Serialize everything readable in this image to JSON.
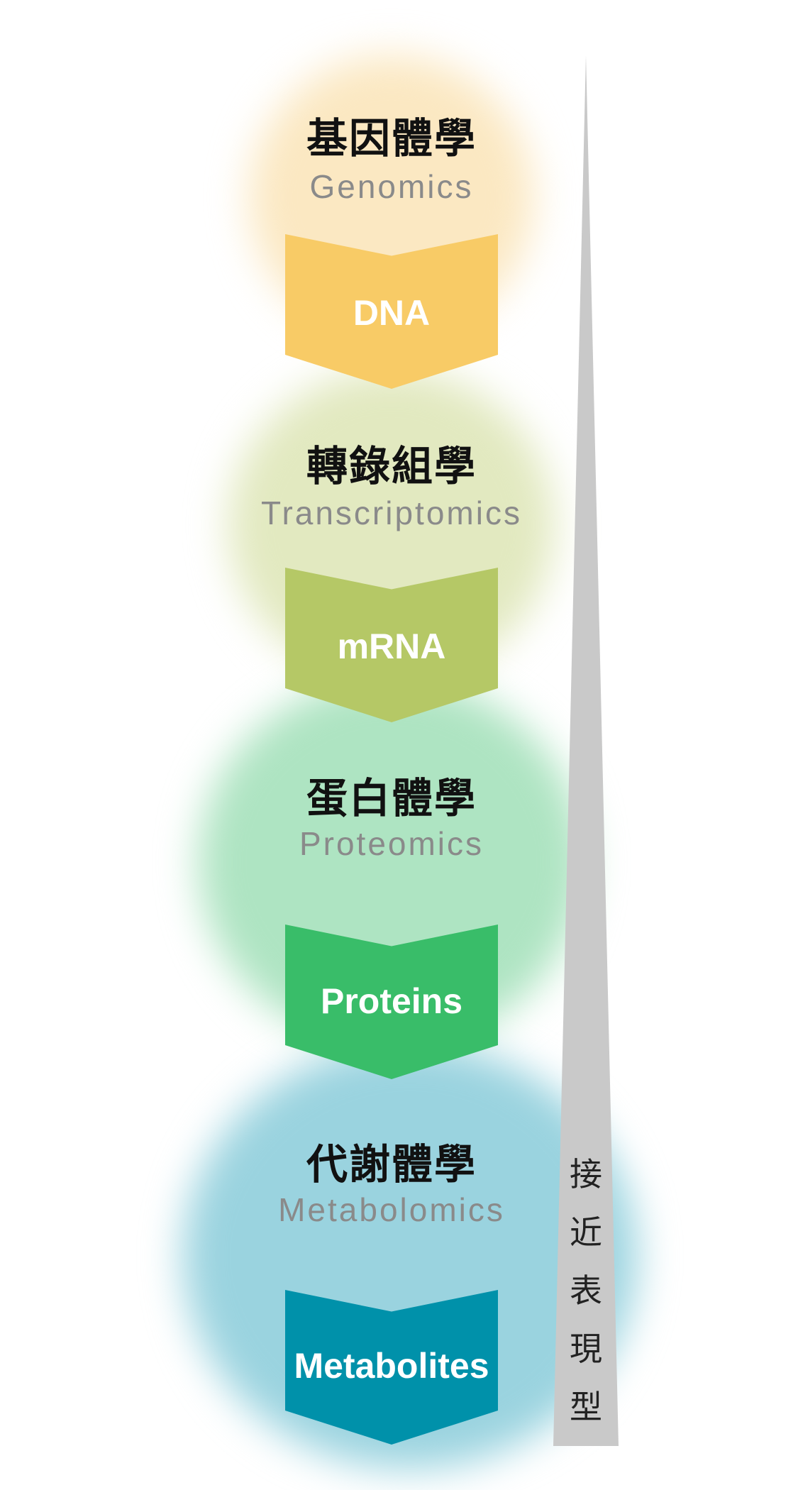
{
  "stages": [
    {
      "title": "基因體學",
      "subtitle": "Genomics",
      "product": "DNA",
      "glow_color": "#fbe8c2",
      "chevron_color": "#f8cb66"
    },
    {
      "title": "轉錄組學",
      "subtitle": "Transcriptomics",
      "product": "mRNA",
      "glow_color": "#e2e9c0",
      "chevron_color": "#b5c866"
    },
    {
      "title": "蛋白體學",
      "subtitle": "Proteomics",
      "product": "Proteins",
      "glow_color": "#aee4c2",
      "chevron_color": "#39bd69"
    },
    {
      "title": "代謝體學",
      "subtitle": "Metabolomics",
      "product": "Metabolites",
      "glow_color": "#9ad3df",
      "chevron_color": "#0091aa"
    }
  ],
  "gradient_label": {
    "chars": [
      "接",
      "近",
      "表",
      "現",
      "型"
    ],
    "color": "#c9c9c9"
  }
}
